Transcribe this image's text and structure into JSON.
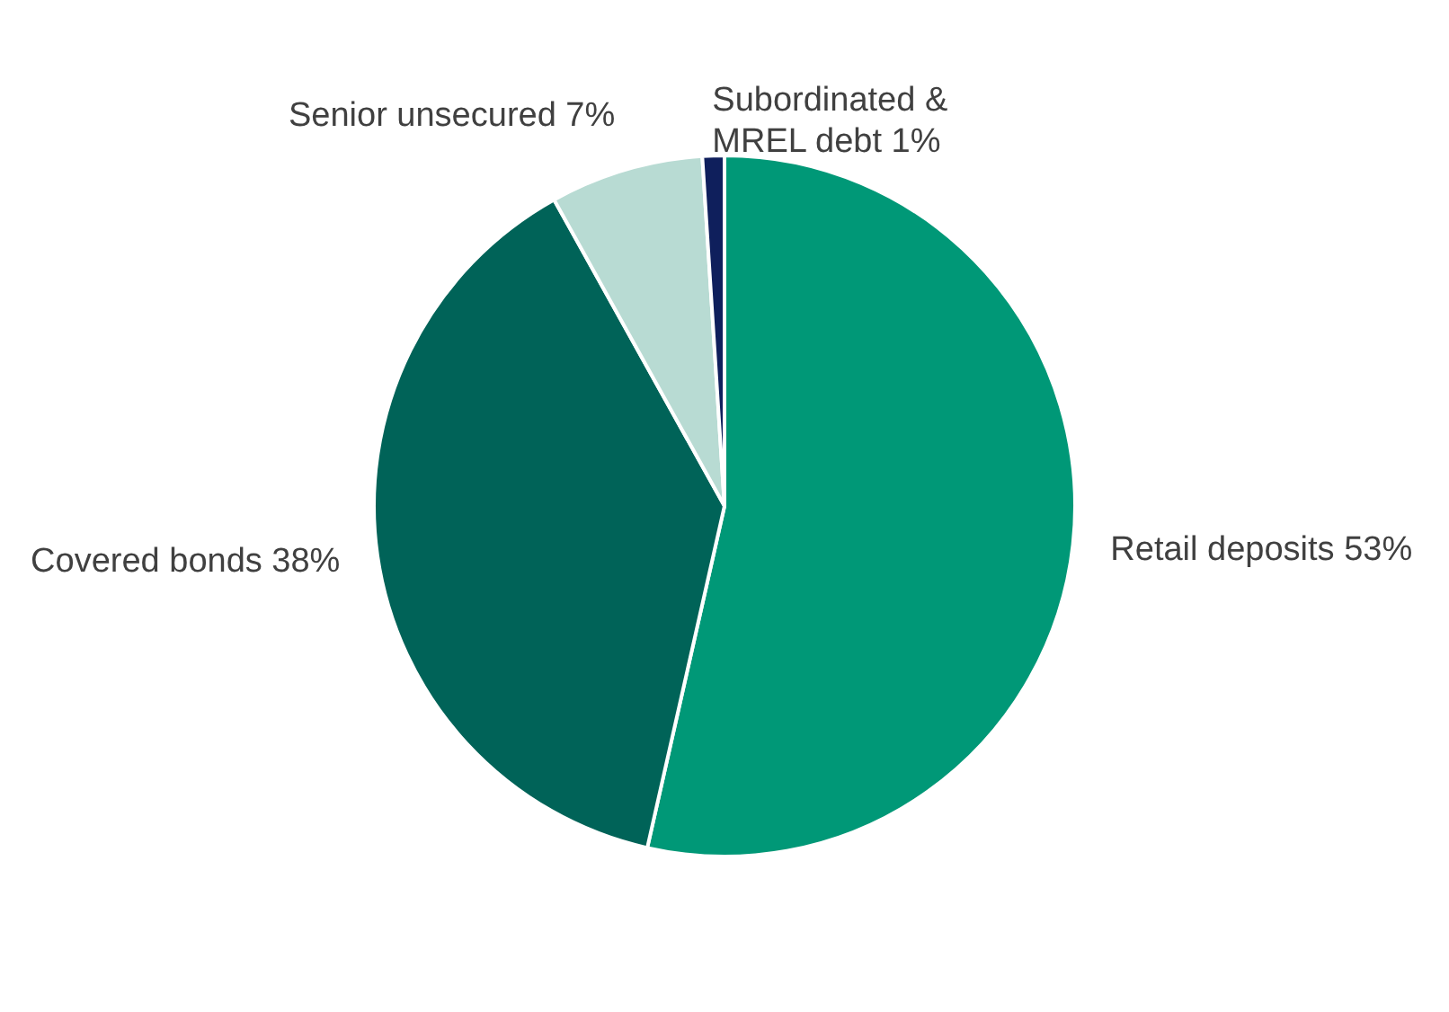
{
  "chart_data": {
    "type": "pie",
    "categories": [
      "Retail deposits",
      "Covered bonds",
      "Senior unsecured",
      "Subordinated & MREL debt"
    ],
    "values": [
      53,
      38,
      7,
      1
    ],
    "value_labels": [
      "53%",
      "38%",
      "7%",
      "1%"
    ],
    "colors": [
      "#009877",
      "#006358",
      "#b8dbd3",
      "#0f1f5c"
    ]
  }
}
